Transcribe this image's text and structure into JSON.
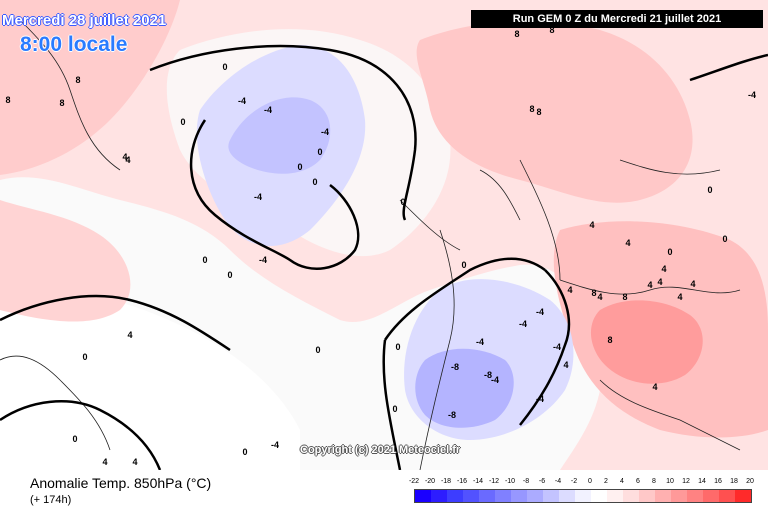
{
  "header": {
    "date": "Mercredi 28 juillet 2021",
    "time": "8:00 locale",
    "run": "Run GEM 0 Z du Mercredi 21 juillet 2021"
  },
  "copyright": "Copyright (c) 2021 Meteociel.fr",
  "footer": {
    "variable": "Anomalie Temp. 850hPa (°C)",
    "lead": "(+ 174h)"
  },
  "scale": {
    "labels": [
      "-22",
      "-20",
      "-18",
      "-16",
      "-14",
      "-12",
      "-10",
      "-8",
      "-6",
      "-4",
      "-2",
      "0",
      "2",
      "4",
      "6",
      "8",
      "10",
      "12",
      "14",
      "16",
      "18",
      "20"
    ],
    "colors": [
      "#1a00ff",
      "#2d1dff",
      "#3d3dff",
      "#5252ff",
      "#6a6aff",
      "#8080ff",
      "#9797ff",
      "#ababff",
      "#c3c3ff",
      "#dcdcff",
      "#f2f2ff",
      "#ffffff",
      "#fff0f0",
      "#ffdede",
      "#ffc8c8",
      "#ffb0b0",
      "#ff9999",
      "#ff8282",
      "#ff6a6a",
      "#ff5050",
      "#ff2a2a"
    ]
  },
  "contour_labels": [
    {
      "text": "8"
    },
    {
      "text": "8"
    },
    {
      "text": "8"
    },
    {
      "text": "4"
    },
    {
      "text": "4"
    },
    {
      "text": "4"
    },
    {
      "text": "0"
    },
    {
      "text": "0"
    },
    {
      "text": "0"
    },
    {
      "text": "0"
    },
    {
      "text": "-4"
    },
    {
      "text": "-4"
    },
    {
      "text": "-4"
    },
    {
      "text": "-4"
    },
    {
      "text": "0"
    },
    {
      "text": "0"
    },
    {
      "text": "-4"
    },
    {
      "text": "0"
    },
    {
      "text": "8"
    },
    {
      "text": "8"
    },
    {
      "text": "8"
    },
    {
      "text": "4"
    },
    {
      "text": "4"
    },
    {
      "text": "4"
    },
    {
      "text": "8"
    },
    {
      "text": "8"
    },
    {
      "text": "4"
    },
    {
      "text": "4"
    },
    {
      "text": "-4"
    },
    {
      "text": "-4"
    },
    {
      "text": "-8"
    },
    {
      "text": "-8"
    },
    {
      "text": "-8"
    },
    {
      "text": "-4"
    },
    {
      "text": "-4"
    },
    {
      "text": "-4"
    },
    {
      "text": "0"
    },
    {
      "text": "0"
    },
    {
      "text": "0"
    },
    {
      "text": "4"
    },
    {
      "text": "4"
    },
    {
      "text": "0"
    },
    {
      "text": "0"
    },
    {
      "text": "-4"
    },
    {
      "text": "0"
    },
    {
      "text": "0"
    },
    {
      "text": "4"
    },
    {
      "text": "0"
    },
    {
      "text": "0"
    },
    {
      "text": "4"
    },
    {
      "text": "-4"
    },
    {
      "text": "4"
    },
    {
      "text": "0"
    },
    {
      "text": "4"
    },
    {
      "text": "4"
    },
    {
      "text": "8"
    },
    {
      "text": "8"
    },
    {
      "text": "4"
    },
    {
      "text": "-4"
    },
    {
      "text": "0"
    }
  ]
}
